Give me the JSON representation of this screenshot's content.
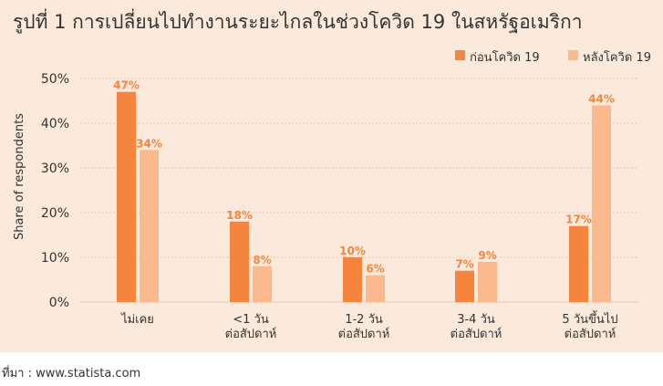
{
  "title": "รูปที่ 1 การเปลี่ยนไปทำงานระยะไกลในช่วงโควิด 19 ในสหรัฐอเมริกา",
  "source": "ที่มา : www.statista.com",
  "colors": {
    "before": "#f5843e",
    "after": "#fbb98e",
    "panel": "#fbeadc",
    "grid": "#e6c8b2",
    "label": "#f5843e"
  },
  "chart_data": {
    "type": "bar",
    "title": "",
    "ylabel": "Share of respondents",
    "xlabel": "",
    "ylim": [
      0,
      50
    ],
    "yticks": [
      0,
      10,
      20,
      30,
      40,
      50
    ],
    "ytick_labels": [
      "0%",
      "10%",
      "20%",
      "30%",
      "40%",
      "50%"
    ],
    "categories": [
      [
        "ไม่เคย"
      ],
      [
        "<1 วัน",
        "ต่อสัปดาห์"
      ],
      [
        "1-2 วัน",
        "ต่อสัปดาห์"
      ],
      [
        "3-4 วัน",
        "ต่อสัปดาห์"
      ],
      [
        "5 วันขึ้นไป",
        "ต่อสัปดาห์"
      ]
    ],
    "series": [
      {
        "name": "ก่อนโควิด 19",
        "values": [
          47,
          18,
          10,
          7,
          17
        ],
        "labels": [
          "47%",
          "18%",
          "10%",
          "7%",
          "17%"
        ]
      },
      {
        "name": "หลังโควิด 19",
        "values": [
          34,
          8,
          6,
          9,
          44
        ],
        "labels": [
          "34%",
          "8%",
          "6%",
          "9%",
          "44%"
        ]
      }
    ],
    "legend_position": "top-right",
    "grid": true
  }
}
